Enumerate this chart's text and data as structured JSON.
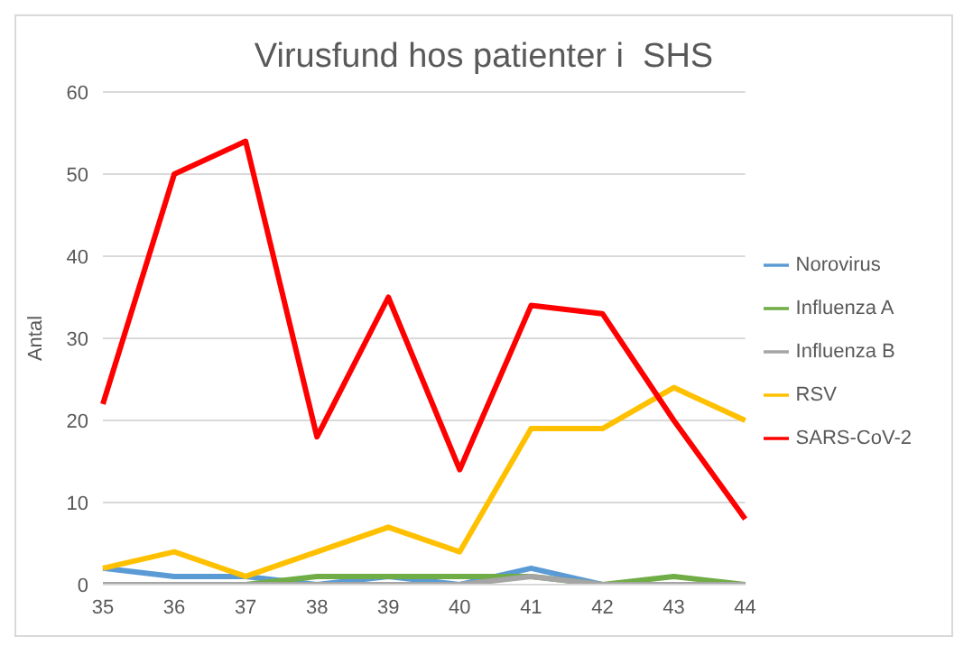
{
  "chart_data": {
    "type": "line",
    "title": "Virusfund hos patienter i  SHS",
    "ylabel": "Antal",
    "categories": [
      "35",
      "36",
      "37",
      "38",
      "39",
      "40",
      "41",
      "42",
      "43",
      "44"
    ],
    "series": [
      {
        "name": "Norovirus",
        "color": "#5b9bd5",
        "values": [
          2,
          1,
          1,
          0,
          1,
          0,
          2,
          0,
          0,
          0
        ]
      },
      {
        "name": "Influenza A",
        "color": "#70ad47",
        "values": [
          0,
          0,
          0,
          1,
          1,
          1,
          1,
          0,
          1,
          0
        ]
      },
      {
        "name": "Influenza B",
        "color": "#a5a5a5",
        "values": [
          0,
          0,
          0,
          0,
          0,
          0,
          1,
          0,
          0,
          0
        ]
      },
      {
        "name": "RSV",
        "color": "#ffc000",
        "values": [
          2,
          4,
          1,
          4,
          7,
          4,
          19,
          19,
          24,
          20
        ]
      },
      {
        "name": "SARS-CoV-2",
        "color": "#ff0000",
        "values": [
          22,
          50,
          54,
          18,
          35,
          14,
          34,
          33,
          20,
          8
        ]
      }
    ],
    "ylim": [
      0,
      60
    ],
    "yticks": [
      0,
      10,
      20,
      30,
      40,
      50,
      60
    ],
    "grid": "y",
    "legend": "right",
    "marker": "none",
    "line_style": "solid"
  }
}
